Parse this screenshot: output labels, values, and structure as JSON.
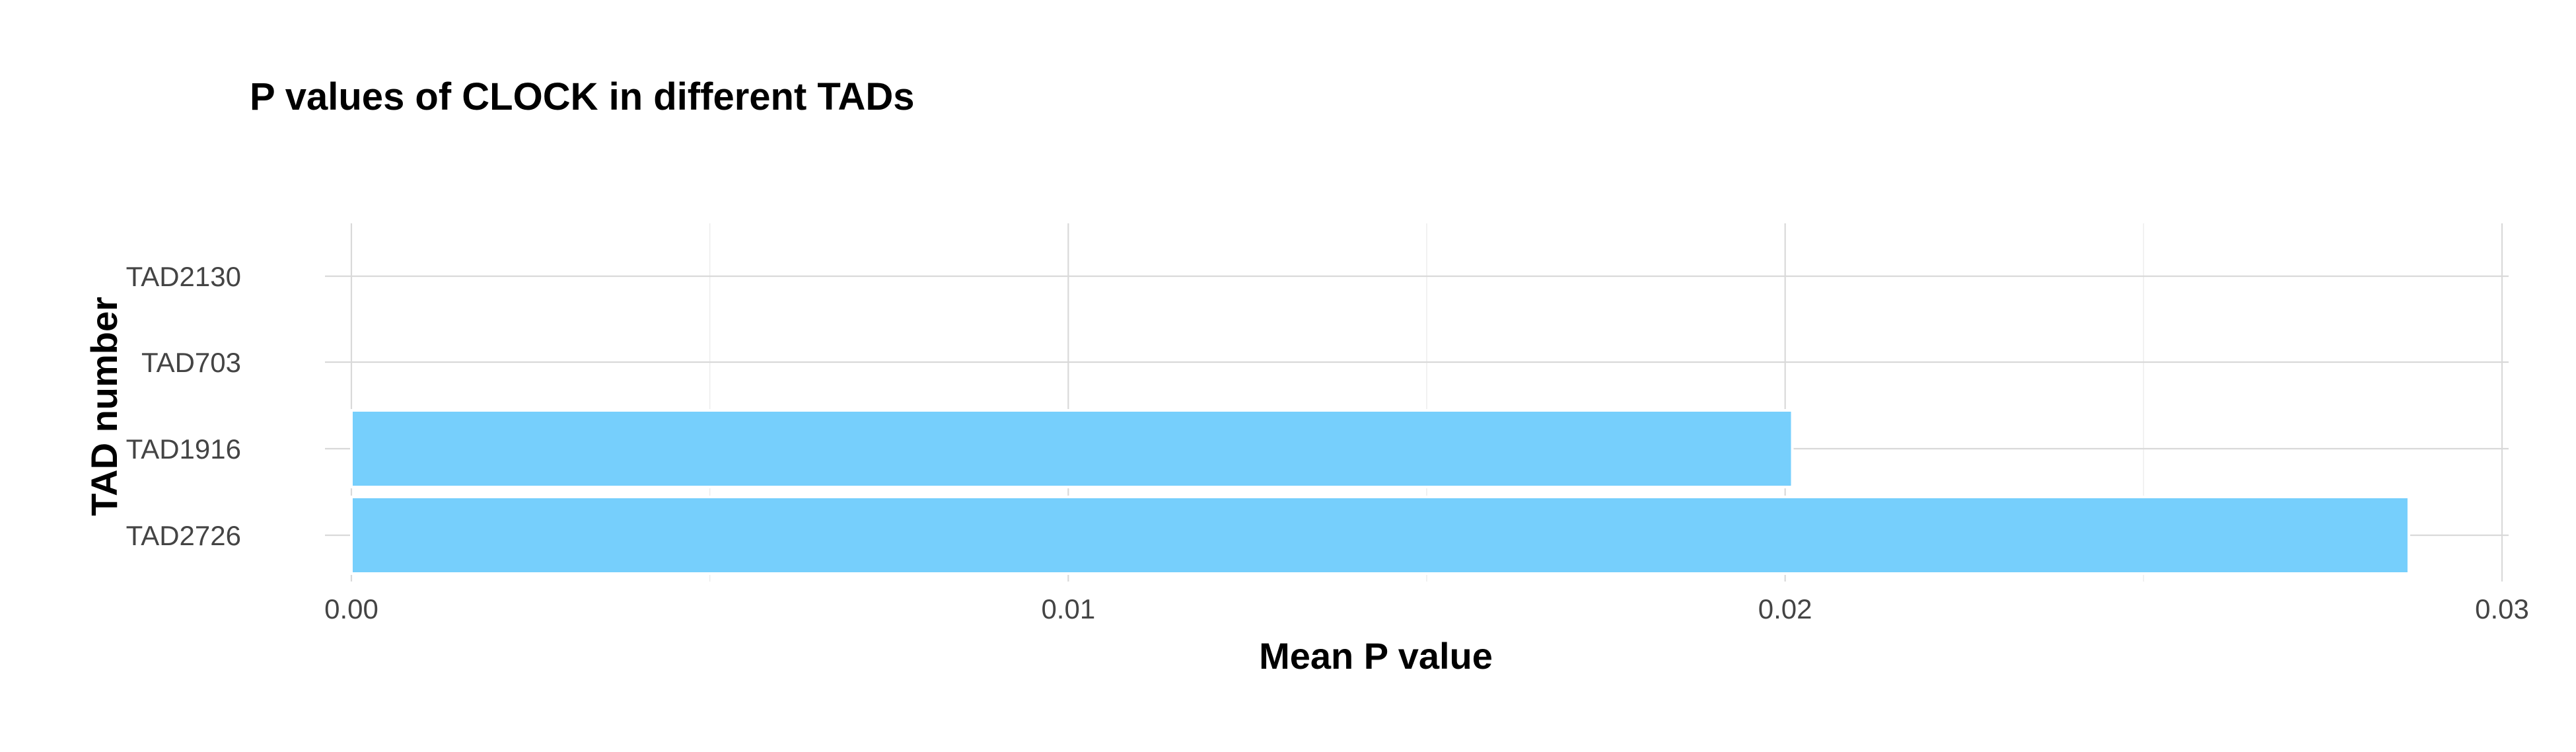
{
  "chart_data": {
    "type": "bar",
    "orientation": "horizontal",
    "title": "P values of CLOCK in different TADs",
    "xlabel": "Mean P value",
    "ylabel": "TAD number",
    "categories": [
      "TAD2130",
      "TAD703",
      "TAD1916",
      "TAD2726"
    ],
    "values": [
      0.0,
      0.0,
      0.0201,
      0.0287
    ],
    "xlim": [
      0,
      0.03
    ],
    "xticks": [
      0.0,
      0.01,
      0.02,
      0.03
    ],
    "xtick_labels": [
      "0.00",
      "0.01",
      "0.02",
      "0.03"
    ],
    "grid": true,
    "legend": "none",
    "bar_color": "#76CFFC"
  }
}
